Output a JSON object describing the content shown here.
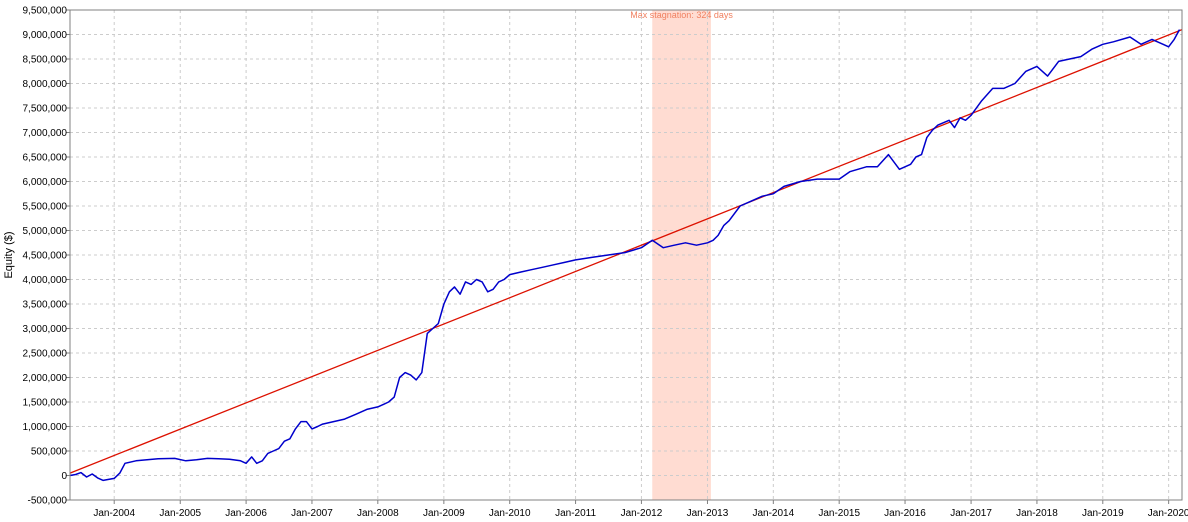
{
  "chart_data": {
    "type": "line",
    "title": "",
    "xlabel": "",
    "ylabel": "Equity ($)",
    "ylim": [
      -500000,
      9500000
    ],
    "xlim": [
      "2003-05-01",
      "2020-03-15"
    ],
    "grid": true,
    "legend": "none",
    "y_ticks": [
      -500000,
      0,
      500000,
      1000000,
      1500000,
      2000000,
      2500000,
      3000000,
      3500000,
      4000000,
      4500000,
      5000000,
      5500000,
      6000000,
      6500000,
      7000000,
      7500000,
      8000000,
      8500000,
      9000000,
      9500000
    ],
    "y_tick_labels": [
      "-500,000",
      "0",
      "500,000",
      "1,000,000",
      "1,500,000",
      "2,000,000",
      "2,500,000",
      "3,000,000",
      "3,500,000",
      "4,000,000",
      "4,500,000",
      "5,000,000",
      "5,500,000",
      "6,000,000",
      "6,500,000",
      "7,000,000",
      "7,500,000",
      "8,000,000",
      "8,500,000",
      "9,000,000",
      "9,500,000"
    ],
    "x_ticks": [
      "2004-01-01",
      "2005-01-01",
      "2006-01-01",
      "2007-01-01",
      "2008-01-01",
      "2009-01-01",
      "2010-01-01",
      "2011-01-01",
      "2012-01-01",
      "2013-01-01",
      "2014-01-01",
      "2015-01-01",
      "2016-01-01",
      "2017-01-01",
      "2018-01-01",
      "2019-01-01",
      "2020-01-01"
    ],
    "x_tick_labels": [
      "Jan-2004",
      "Jan-2005",
      "Jan-2006",
      "Jan-2007",
      "Jan-2008",
      "Jan-2009",
      "Jan-2010",
      "Jan-2011",
      "Jan-2012",
      "Jan-2013",
      "Jan-2014",
      "Jan-2015",
      "Jan-2016",
      "Jan-2017",
      "Jan-2018",
      "Jan-2019",
      "Jan-2020"
    ],
    "colors": {
      "equity": "#0000cc",
      "trend": "#dd1100",
      "stagnation_fill": "#ffdcd2",
      "stagnation_text": "#f08060",
      "grid": "#cccccc",
      "axis": "#808080"
    },
    "stagnation": {
      "start": "2012-03-01",
      "end": "2013-01-20",
      "label": "Max stagnation: 324 days"
    },
    "series": [
      {
        "key": "equity",
        "x": [
          "2003-05-01",
          "2003-06-01",
          "2003-07-01",
          "2003-08-01",
          "2003-09-01",
          "2003-10-01",
          "2003-11-01",
          "2003-12-01",
          "2004-01-01",
          "2004-02-01",
          "2004-03-01",
          "2004-05-01",
          "2004-07-01",
          "2004-09-01",
          "2004-12-01",
          "2005-02-01",
          "2005-04-01",
          "2005-06-01",
          "2005-08-01",
          "2005-10-01",
          "2005-12-01",
          "2006-01-01",
          "2006-02-01",
          "2006-03-01",
          "2006-04-01",
          "2006-05-01",
          "2006-06-01",
          "2006-07-01",
          "2006-08-01",
          "2006-09-01",
          "2006-10-01",
          "2006-11-01",
          "2006-12-01",
          "2007-01-01",
          "2007-02-01",
          "2007-03-01",
          "2007-05-01",
          "2007-07-01",
          "2007-09-01",
          "2007-11-01",
          "2008-01-01",
          "2008-02-01",
          "2008-03-01",
          "2008-04-01",
          "2008-05-01",
          "2008-06-01",
          "2008-07-01",
          "2008-08-01",
          "2008-09-01",
          "2008-10-01",
          "2008-11-01",
          "2008-12-01",
          "2009-01-01",
          "2009-02-01",
          "2009-03-01",
          "2009-04-01",
          "2009-05-01",
          "2009-06-01",
          "2009-07-01",
          "2009-08-01",
          "2009-09-01",
          "2009-10-01",
          "2009-11-01",
          "2009-12-01",
          "2010-01-01",
          "2010-03-01",
          "2010-05-01",
          "2010-07-01",
          "2010-09-01",
          "2010-11-01",
          "2011-01-01",
          "2011-04-01",
          "2011-07-01",
          "2011-10-01",
          "2012-01-01",
          "2012-03-01",
          "2012-05-01",
          "2012-07-01",
          "2012-09-01",
          "2012-11-01",
          "2013-01-01",
          "2013-02-01",
          "2013-03-01",
          "2013-04-01",
          "2013-05-01",
          "2013-07-01",
          "2013-09-01",
          "2013-11-01",
          "2014-01-01",
          "2014-03-01",
          "2014-06-01",
          "2014-09-01",
          "2015-01-01",
          "2015-03-01",
          "2015-06-01",
          "2015-08-01",
          "2015-10-01",
          "2015-12-01",
          "2016-01-01",
          "2016-02-01",
          "2016-03-01",
          "2016-04-01",
          "2016-05-01",
          "2016-06-01",
          "2016-07-01",
          "2016-08-01",
          "2016-09-01",
          "2016-10-01",
          "2016-11-01",
          "2016-12-01",
          "2017-01-01",
          "2017-03-01",
          "2017-05-01",
          "2017-07-01",
          "2017-09-01",
          "2017-11-01",
          "2018-01-01",
          "2018-03-01",
          "2018-05-01",
          "2018-07-01",
          "2018-09-01",
          "2018-11-01",
          "2019-01-01",
          "2019-03-01",
          "2019-06-01",
          "2019-08-01",
          "2019-10-01",
          "2019-12-01",
          "2020-01-01",
          "2020-02-01",
          "2020-03-01"
        ],
        "y": [
          0,
          20000,
          60000,
          -30000,
          30000,
          -50000,
          -100000,
          -80000,
          -60000,
          50000,
          250000,
          300000,
          320000,
          340000,
          350000,
          300000,
          320000,
          350000,
          340000,
          330000,
          300000,
          250000,
          380000,
          250000,
          300000,
          450000,
          500000,
          550000,
          700000,
          750000,
          950000,
          1100000,
          1100000,
          950000,
          1000000,
          1050000,
          1100000,
          1150000,
          1250000,
          1350000,
          1400000,
          1450000,
          1500000,
          1600000,
          2000000,
          2100000,
          2050000,
          1950000,
          2100000,
          2900000,
          3000000,
          3100000,
          3500000,
          3750000,
          3850000,
          3700000,
          3950000,
          3900000,
          4000000,
          3950000,
          3750000,
          3800000,
          3950000,
          4000000,
          4100000,
          4150000,
          4200000,
          4250000,
          4300000,
          4350000,
          4400000,
          4450000,
          4500000,
          4550000,
          4650000,
          4800000,
          4650000,
          4700000,
          4750000,
          4700000,
          4750000,
          4800000,
          4900000,
          5100000,
          5200000,
          5500000,
          5600000,
          5700000,
          5750000,
          5900000,
          6000000,
          6050000,
          6050000,
          6200000,
          6300000,
          6300000,
          6550000,
          6250000,
          6300000,
          6350000,
          6500000,
          6550000,
          6900000,
          7050000,
          7150000,
          7200000,
          7250000,
          7100000,
          7300000,
          7250000,
          7350000,
          7650000,
          7900000,
          7900000,
          8000000,
          8250000,
          8350000,
          8150000,
          8450000,
          8500000,
          8550000,
          8700000,
          8800000,
          8850000,
          8950000,
          8800000,
          8900000,
          8800000,
          8750000,
          8900000,
          9100000
        ]
      },
      {
        "key": "trend",
        "x": [
          "2003-05-01",
          "2020-03-15"
        ],
        "y": [
          50000,
          9100000
        ]
      }
    ]
  }
}
